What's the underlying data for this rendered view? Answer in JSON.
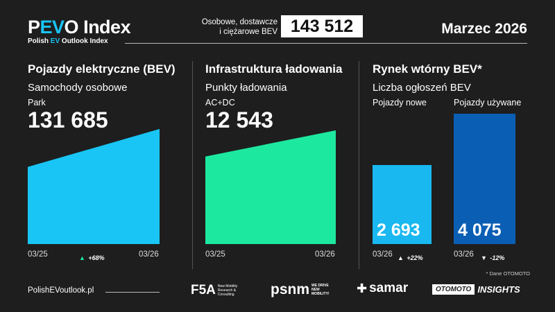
{
  "header": {
    "logo": {
      "p": "P",
      "ev": "EV",
      "o": "O",
      "rest": " Index"
    },
    "subtitle": {
      "a": "Polish ",
      "ev": "EV",
      "b": " Outlook Index"
    },
    "total_label_1": "Osobowe, dostawcze",
    "total_label_2": "i ciężarowe BEV",
    "total_value": "143 512",
    "date": "Marzec 2026"
  },
  "colors": {
    "background": "#1e1e1e",
    "accent": "#18c5f5",
    "green": "#1de8a0",
    "bar_new": "#19b8f0",
    "bar_used": "#0a5fb5"
  },
  "bev": {
    "title": "Pojazdy elektryczne (BEV)",
    "subtitle": "Samochody osobowe",
    "label": "Park",
    "value": "131 685",
    "start": "03/25",
    "end": "03/26",
    "change": "+68%",
    "change_dir": "up"
  },
  "charging": {
    "title": "Infrastruktura ładowania",
    "subtitle": "Punkty ładowania",
    "label": "AC+DC",
    "value": "12 543",
    "start": "03/25",
    "end": "03/26"
  },
  "used": {
    "title": "Rynek wtórny BEV*",
    "subtitle": "Liczba ogłoszeń BEV",
    "new": {
      "label": "Pojazdy nowe",
      "value": "2 693",
      "date": "03/26",
      "change": "+22%",
      "change_dir": "up"
    },
    "usedcars": {
      "label": "Pojazdy używane",
      "value": "4 075",
      "date": "03/26",
      "change": "-12%",
      "change_dir": "down"
    },
    "note": "* Dane OTOMOTO"
  },
  "footer": {
    "url": "PolishEVoutlook.pl",
    "logos": {
      "f5a": "F5A",
      "f5a_sub": "New Mobility Research & Consulting",
      "psnm": "psnm",
      "psnm_sub": "WE DRIVE NEW MOBILITY!",
      "samar": "samar",
      "otomoto": "OTOMOTO",
      "insights": "INSIGHTS"
    }
  }
}
